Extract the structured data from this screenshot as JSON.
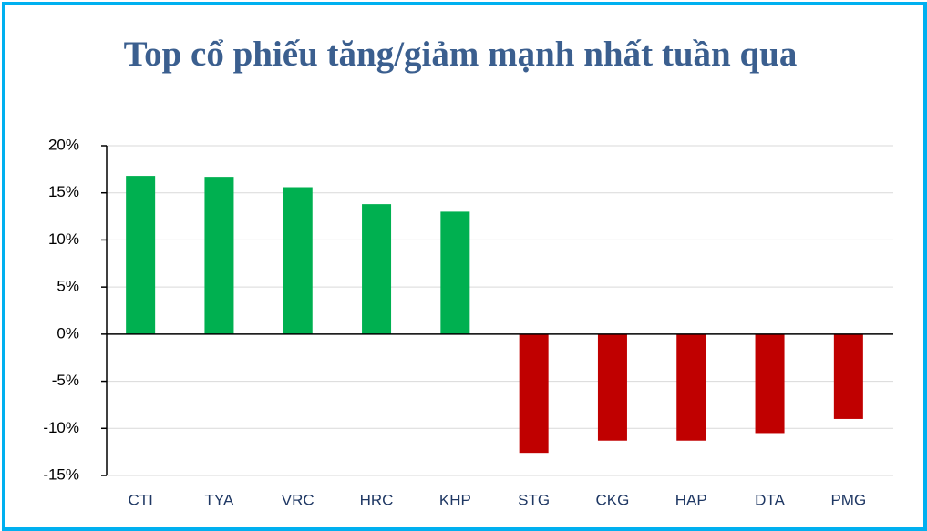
{
  "chart_data": {
    "type": "bar",
    "title": "Top cổ phiếu tăng/giảm mạnh nhất tuần qua",
    "categories": [
      "CTI",
      "TYA",
      "VRC",
      "HRC",
      "KHP",
      "STG",
      "CKG",
      "HAP",
      "DTA",
      "PMG"
    ],
    "values": [
      16.8,
      16.7,
      15.6,
      13.8,
      13.0,
      -12.6,
      -11.3,
      -11.3,
      -10.5,
      -9.0
    ],
    "colors": [
      "#00b050",
      "#00b050",
      "#00b050",
      "#00b050",
      "#00b050",
      "#c00000",
      "#c00000",
      "#c00000",
      "#c00000",
      "#c00000"
    ],
    "ylim": [
      -15,
      20
    ],
    "yticks": [
      {
        "value": -15,
        "label": "-15%"
      },
      {
        "value": -10,
        "label": "-10%"
      },
      {
        "value": -5,
        "label": "-5%"
      },
      {
        "value": 0,
        "label": "0%"
      },
      {
        "value": 5,
        "label": "5%"
      },
      {
        "value": 10,
        "label": "10%"
      },
      {
        "value": 15,
        "label": "15%"
      },
      {
        "value": 20,
        "label": "20%"
      }
    ],
    "grid": true
  }
}
